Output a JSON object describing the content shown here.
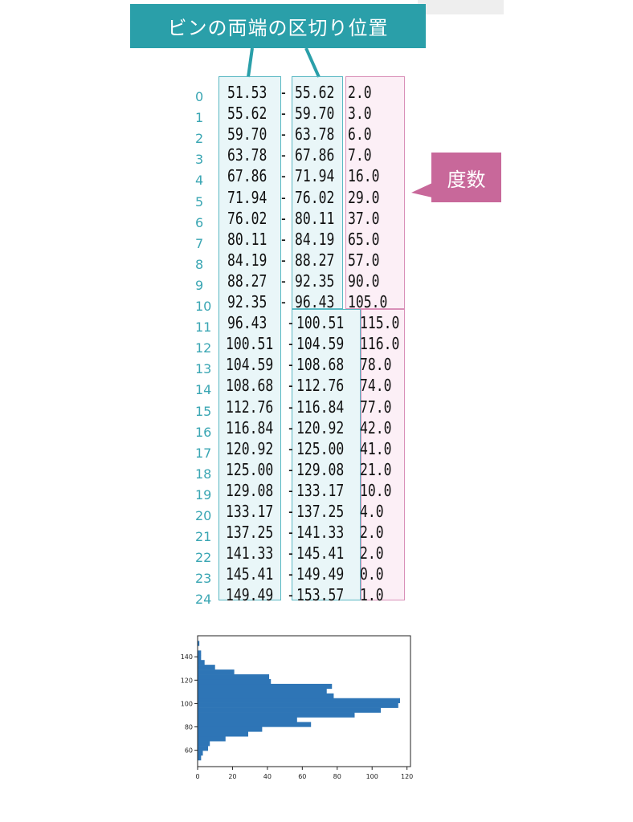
{
  "annotations": {
    "title": "ビンの両端の区切り位置",
    "frequency_label": "度数"
  },
  "table": {
    "separator": "-",
    "rows": [
      {
        "index": "0",
        "left": "51.53",
        "right": "55.62",
        "count": "2.0"
      },
      {
        "index": "1",
        "left": "55.62",
        "right": "59.70",
        "count": "3.0"
      },
      {
        "index": "2",
        "left": "59.70",
        "right": "63.78",
        "count": "6.0"
      },
      {
        "index": "3",
        "left": "63.78",
        "right": "67.86",
        "count": "7.0"
      },
      {
        "index": "4",
        "left": "67.86",
        "right": "71.94",
        "count": "16.0"
      },
      {
        "index": "5",
        "left": "71.94",
        "right": "76.02",
        "count": "29.0"
      },
      {
        "index": "6",
        "left": "76.02",
        "right": "80.11",
        "count": "37.0"
      },
      {
        "index": "7",
        "left": "80.11",
        "right": "84.19",
        "count": "65.0"
      },
      {
        "index": "8",
        "left": "84.19",
        "right": "88.27",
        "count": "57.0"
      },
      {
        "index": "9",
        "left": "88.27",
        "right": "92.35",
        "count": "90.0"
      },
      {
        "index": "10",
        "left": "92.35",
        "right": "96.43",
        "count": "105.0"
      },
      {
        "index": "11",
        "left": "96.43",
        "right": "100.51",
        "count": "115.0"
      },
      {
        "index": "12",
        "left": "100.51",
        "right": "104.59",
        "count": "116.0"
      },
      {
        "index": "13",
        "left": "104.59",
        "right": "108.68",
        "count": "78.0"
      },
      {
        "index": "14",
        "left": "108.68",
        "right": "112.76",
        "count": "74.0"
      },
      {
        "index": "15",
        "left": "112.76",
        "right": "116.84",
        "count": "77.0"
      },
      {
        "index": "16",
        "left": "116.84",
        "right": "120.92",
        "count": "42.0"
      },
      {
        "index": "17",
        "left": "120.92",
        "right": "125.00",
        "count": "41.0"
      },
      {
        "index": "18",
        "left": "125.00",
        "right": "129.08",
        "count": "21.0"
      },
      {
        "index": "19",
        "left": "129.08",
        "right": "133.17",
        "count": "10.0"
      },
      {
        "index": "20",
        "left": "133.17",
        "right": "137.25",
        "count": "4.0"
      },
      {
        "index": "21",
        "left": "137.25",
        "right": "141.33",
        "count": "2.0"
      },
      {
        "index": "22",
        "left": "141.33",
        "right": "145.41",
        "count": "2.0"
      },
      {
        "index": "23",
        "left": "145.41",
        "right": "149.49",
        "count": "0.0"
      },
      {
        "index": "24",
        "left": "149.49",
        "right": "153.57",
        "count": "1.0"
      }
    ]
  },
  "chart_data": {
    "type": "bar",
    "orientation": "horizontal",
    "title": "",
    "xlabel": "",
    "ylabel": "",
    "bin_edges": [
      51.53,
      55.62,
      59.7,
      63.78,
      67.86,
      71.94,
      76.02,
      80.11,
      84.19,
      88.27,
      92.35,
      96.43,
      100.51,
      104.59,
      108.68,
      112.76,
      116.84,
      120.92,
      125.0,
      129.08,
      133.17,
      137.25,
      141.33,
      145.41,
      149.49,
      153.57
    ],
    "values": [
      2,
      3,
      6,
      7,
      16,
      29,
      37,
      65,
      57,
      90,
      105,
      115,
      116,
      78,
      74,
      77,
      42,
      41,
      21,
      10,
      4,
      2,
      2,
      0,
      1
    ],
    "xlim": [
      0,
      122
    ],
    "ylim": [
      46,
      158
    ],
    "xticks": [
      0,
      20,
      40,
      60,
      80,
      100,
      120
    ],
    "yticks": [
      60,
      80,
      100,
      120,
      140
    ],
    "bar_color": "#2e75b6",
    "grid": false
  }
}
